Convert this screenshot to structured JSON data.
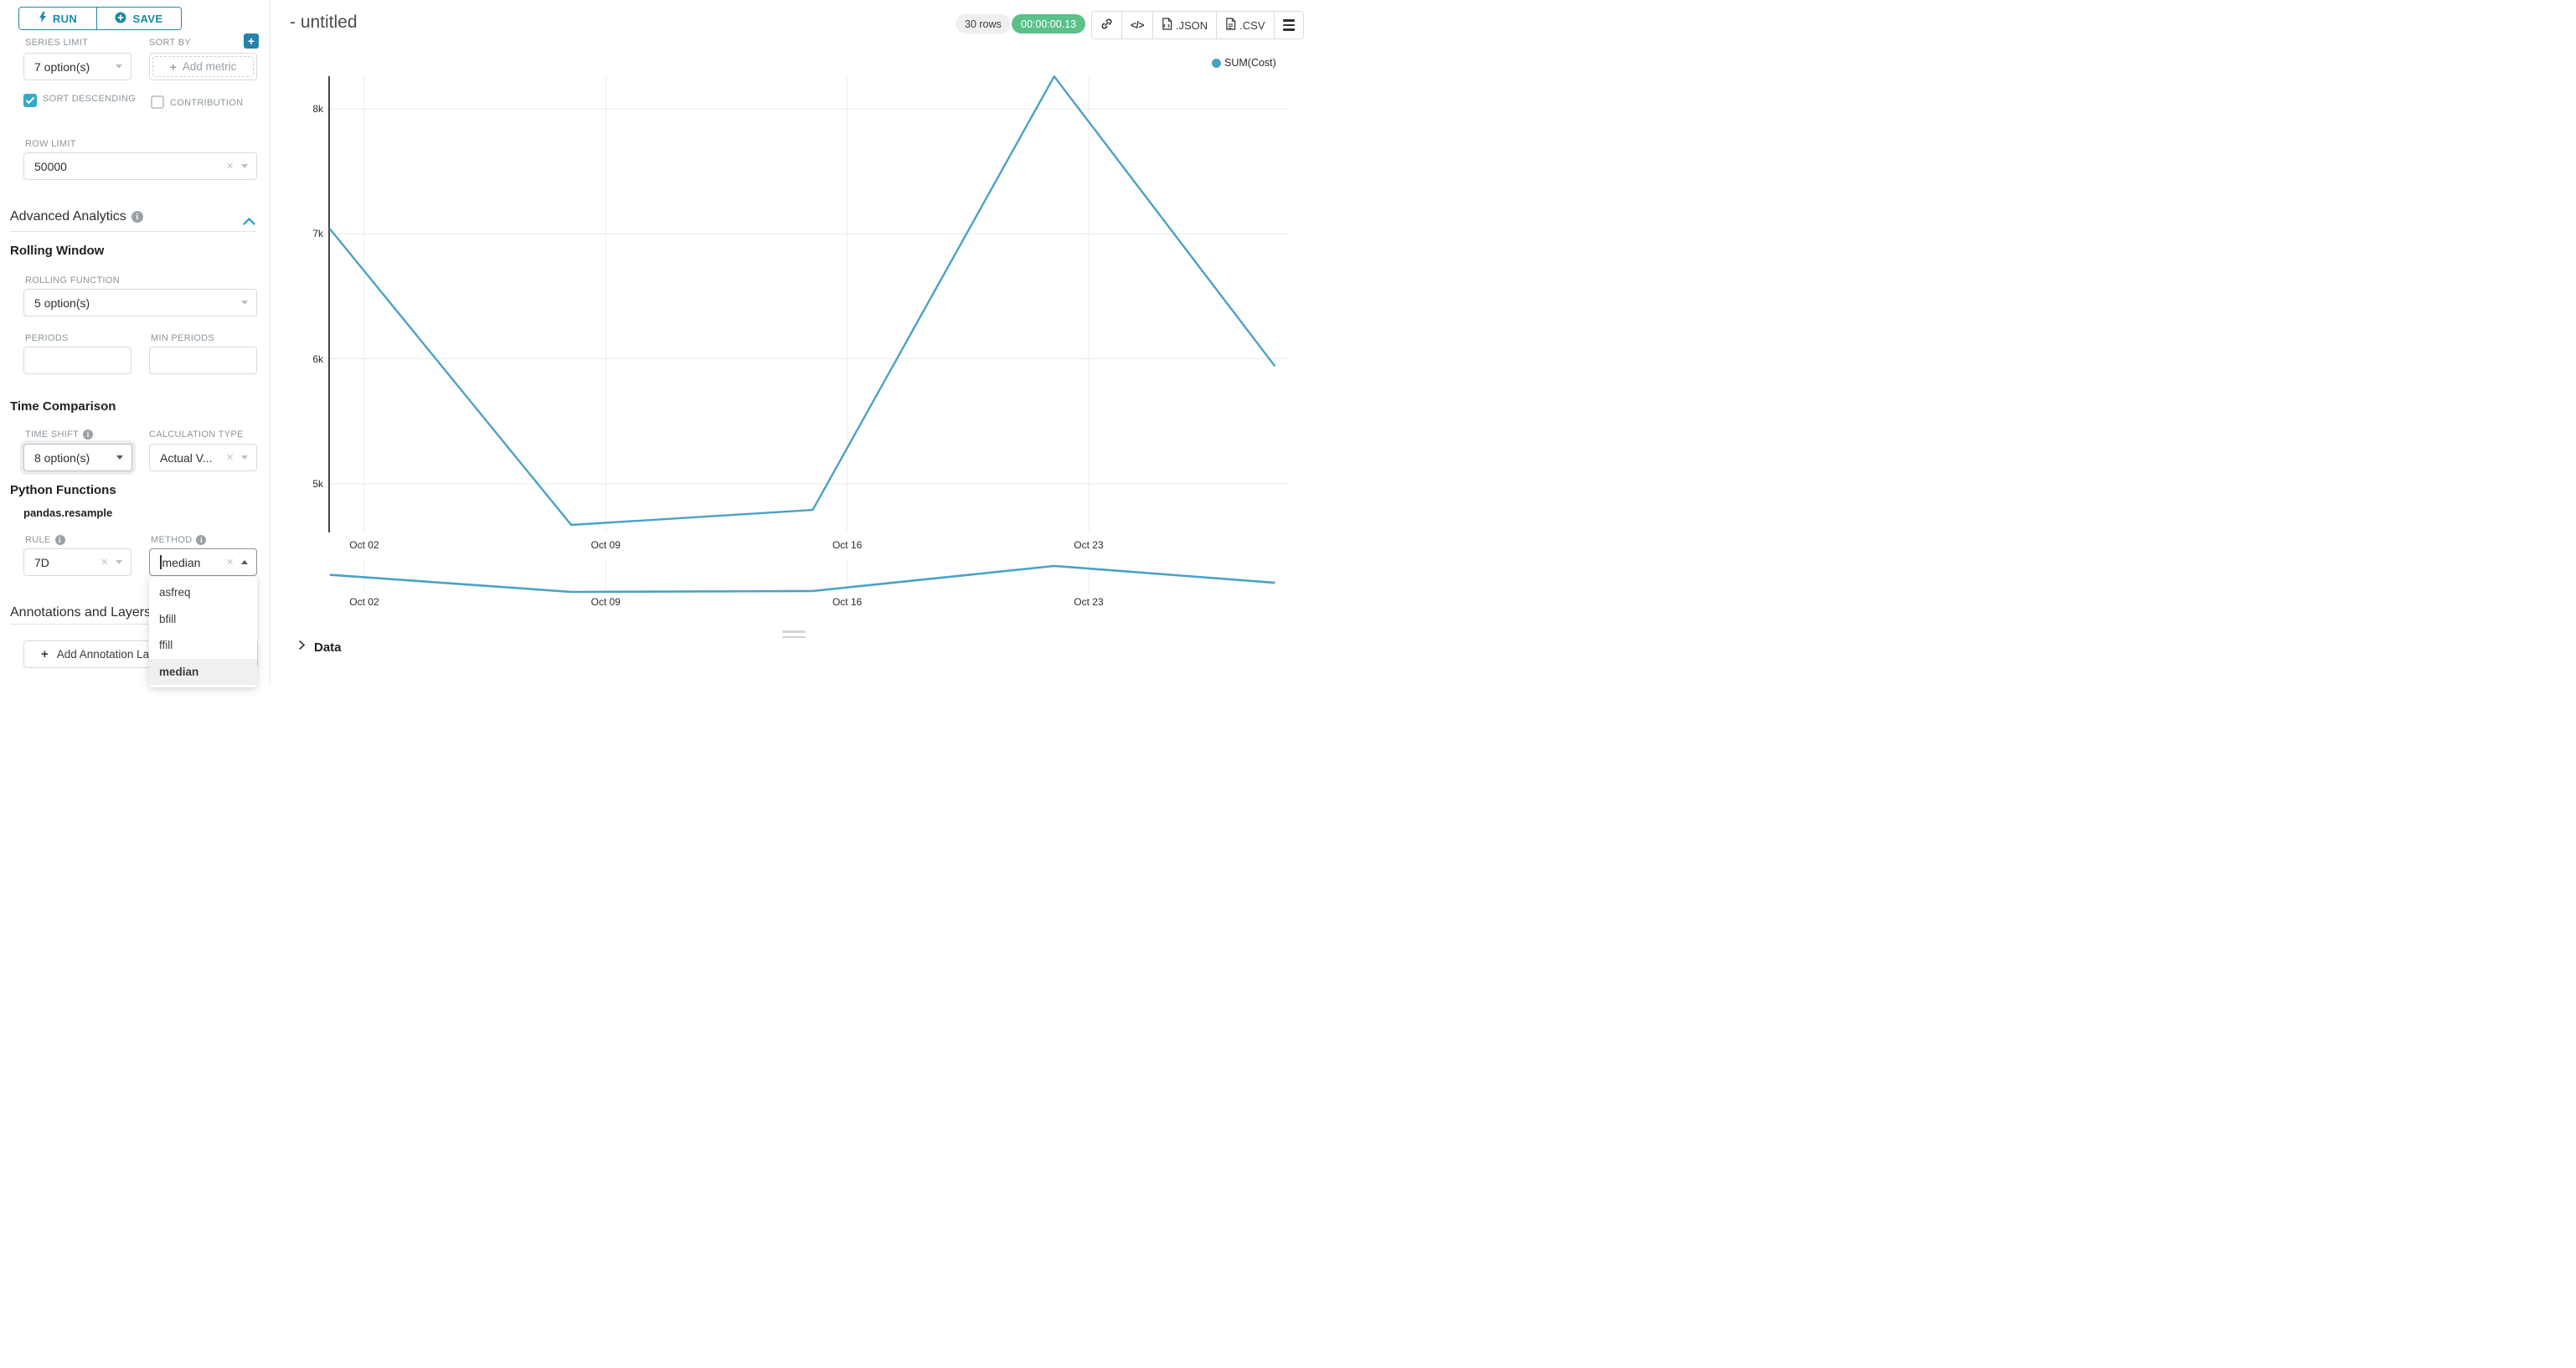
{
  "toolbar": {
    "run_label": "RUN",
    "save_label": "SAVE"
  },
  "controls": {
    "series_limit": {
      "label": "SERIES LIMIT",
      "value": "7 option(s)"
    },
    "sort_by": {
      "label": "SORT BY",
      "placeholder": "Add metric"
    },
    "sort_descending": {
      "label": "SORT DESCENDING",
      "checked": true
    },
    "contribution": {
      "label": "CONTRIBUTION",
      "checked": false
    },
    "row_limit": {
      "label": "ROW LIMIT",
      "value": "50000"
    }
  },
  "advanced": {
    "title": "Advanced Analytics",
    "rolling": {
      "title": "Rolling Window",
      "function_label": "ROLLING FUNCTION",
      "function_value": "5 option(s)",
      "periods_label": "PERIODS",
      "periods_value": "",
      "min_periods_label": "MIN PERIODS",
      "min_periods_value": ""
    },
    "comparison": {
      "title": "Time Comparison",
      "time_shift_label": "TIME SHIFT",
      "time_shift_value": "8 option(s)",
      "calc_label": "CALCULATION TYPE",
      "calc_value": "Actual V..."
    },
    "python": {
      "title": "Python Functions",
      "subtitle": "pandas.resample",
      "rule_label": "RULE",
      "rule_value": "7D",
      "method_label": "METHOD",
      "method_value": "median"
    }
  },
  "method_dropdown": {
    "options": [
      "asfreq",
      "bfill",
      "ffill",
      "median"
    ],
    "selected": "median"
  },
  "annotations": {
    "title": "Annotations and Layers",
    "add_label": "Add Annotation Layer"
  },
  "header": {
    "title": "- untitled",
    "rows_badge": "30 rows",
    "timer": "00:00:00.13",
    "export_json": ".JSON",
    "export_csv": ".CSV"
  },
  "data_panel": {
    "title": "Data"
  },
  "colors": {
    "primary": "#1b87a7",
    "accent": "#20a7c9",
    "success_green": "#5ac189",
    "line": "#49a2c5"
  },
  "chart_data": {
    "type": "line",
    "title": "",
    "legend_label": "SUM(Cost)",
    "legend_position": "top-right",
    "grid": true,
    "x_tick_labels": [
      "Oct 02",
      "Oct 09",
      "Oct 16",
      "Oct 23"
    ],
    "x_tick_day_offsets": [
      1,
      8,
      15,
      22
    ],
    "y_tick_labels": [
      "5k",
      "6k",
      "7k",
      "8k"
    ],
    "y_tick_values": [
      5000,
      6000,
      7000,
      8000
    ],
    "ylim": [
      4590,
      8260
    ],
    "series": [
      {
        "name": "SUM(Cost)",
        "x_day_offsets": [
          0,
          7,
          14,
          21,
          27.4
        ],
        "values": [
          7040,
          4670,
          4790,
          8260,
          5940
        ]
      }
    ]
  }
}
